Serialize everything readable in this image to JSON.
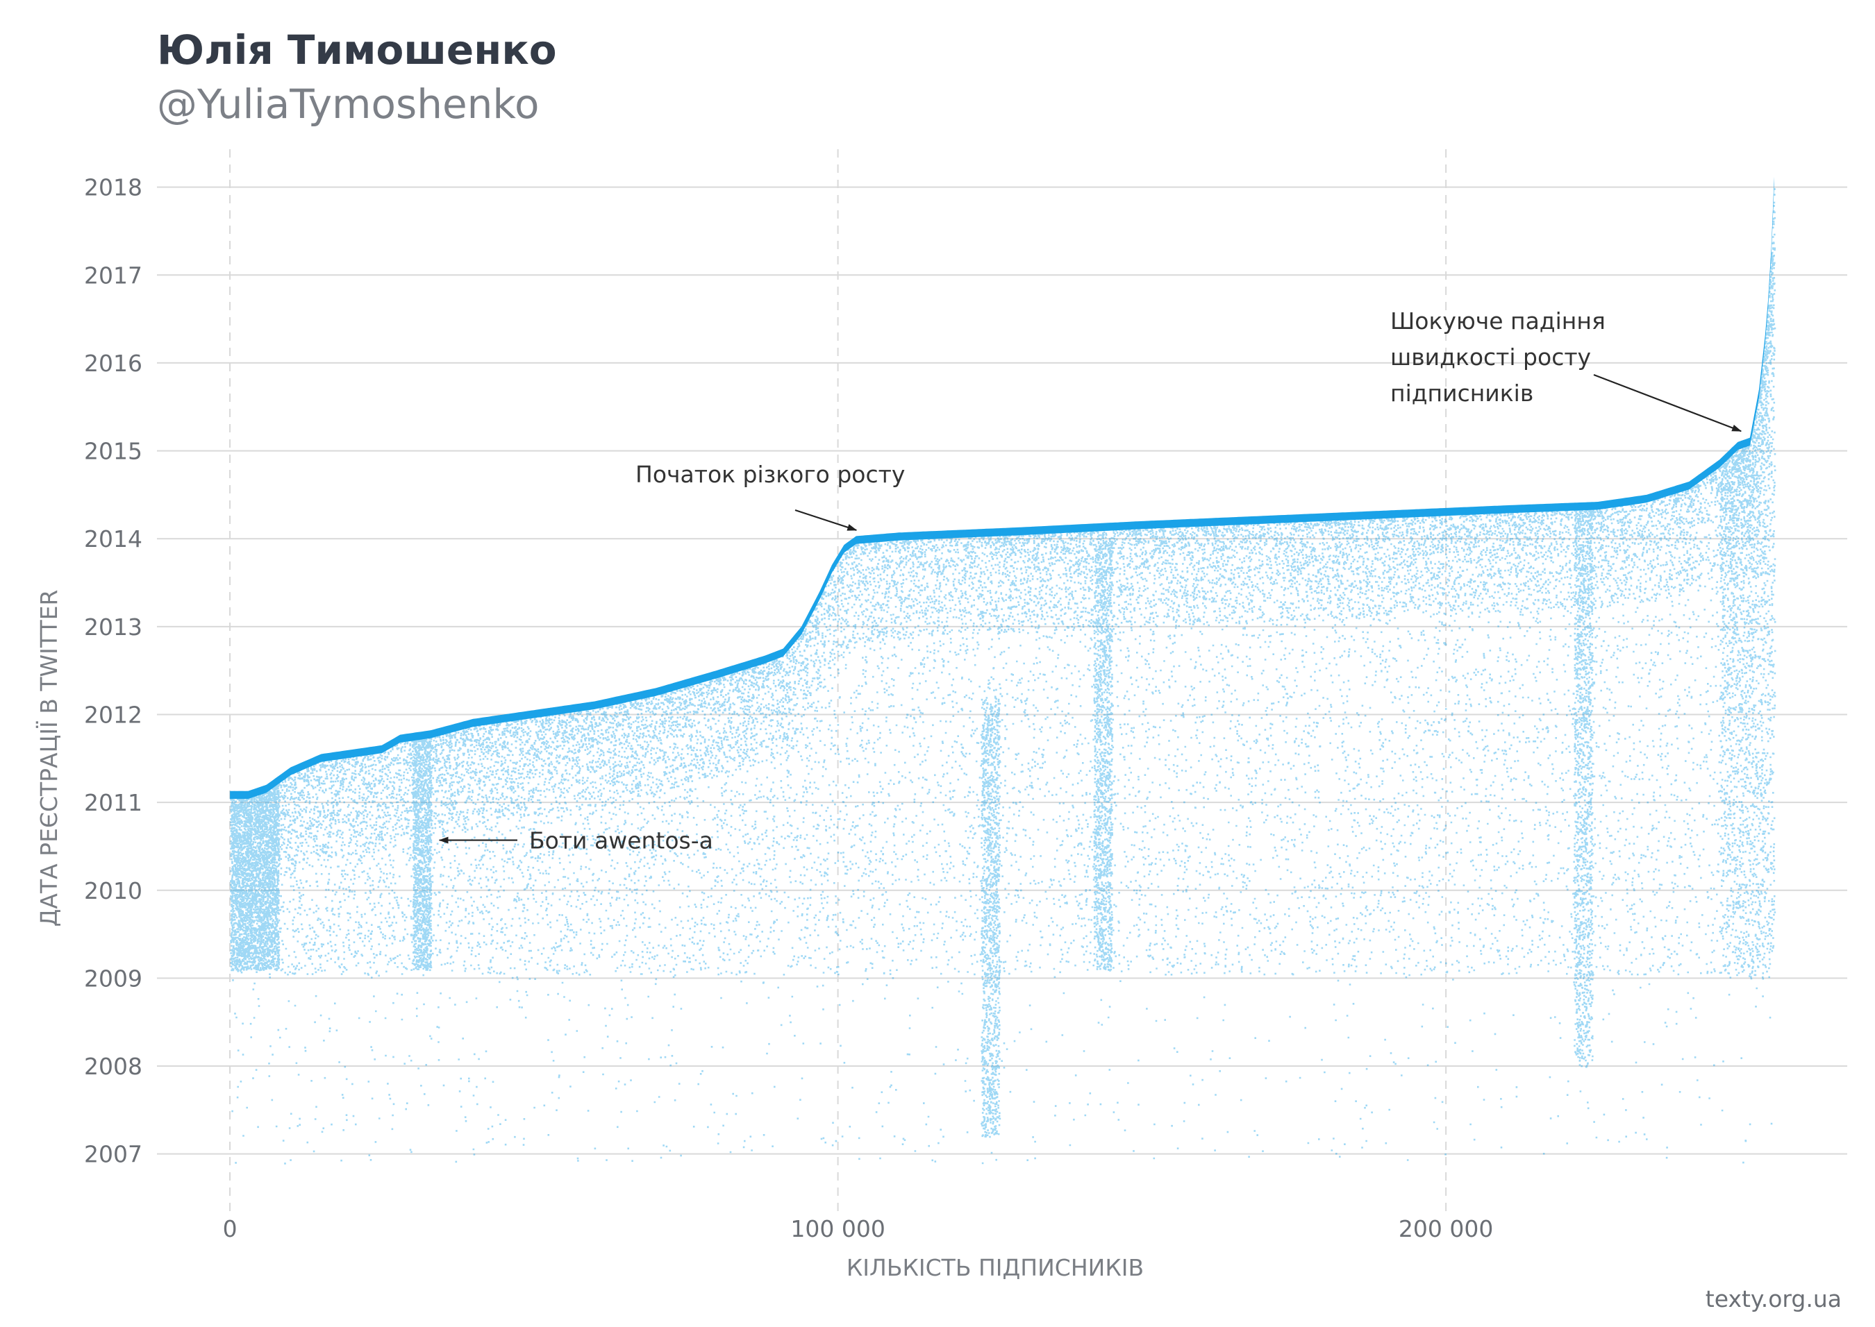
{
  "header": {
    "title": "Юлія Тимошенко",
    "subtitle": "@YuliaTymoshenko"
  },
  "footer": {
    "source": "texty.org.ua"
  },
  "colors": {
    "points": "#1aa3e8",
    "grid": "#d9d9d9",
    "text": "#6b6f75"
  },
  "chart_data": {
    "type": "scatter",
    "xlabel": "КІЛЬКІСТЬ ПІДПИСНИКІВ",
    "ylabel": "ДАТА РЕЄСТРАЦІЇ В TWITTER",
    "xlim": [
      -12000,
      266000
    ],
    "ylim": [
      2006.35,
      2018.55
    ],
    "x_ticks": [
      0,
      100000,
      200000
    ],
    "x_tick_labels": [
      "0",
      "100 000",
      "200 000"
    ],
    "y_ticks": [
      2007,
      2008,
      2009,
      2010,
      2011,
      2012,
      2013,
      2014,
      2015,
      2016,
      2017,
      2018
    ],
    "y_tick_labels": [
      "2007",
      "2008",
      "2009",
      "2010",
      "2011",
      "2012",
      "2013",
      "2014",
      "2015",
      "2016",
      "2017",
      "2018"
    ],
    "grid": true,
    "upper_envelope": [
      [
        0,
        2011.13
      ],
      [
        3000,
        2011.13
      ],
      [
        6000,
        2011.2
      ],
      [
        10000,
        2011.4
      ],
      [
        15000,
        2011.55
      ],
      [
        20000,
        2011.6
      ],
      [
        25000,
        2011.65
      ],
      [
        28000,
        2011.77
      ],
      [
        33000,
        2011.82
      ],
      [
        40000,
        2011.95
      ],
      [
        50000,
        2012.05
      ],
      [
        60000,
        2012.15
      ],
      [
        70000,
        2012.3
      ],
      [
        80000,
        2012.5
      ],
      [
        88000,
        2012.67
      ],
      [
        91000,
        2012.75
      ],
      [
        94000,
        2013.0
      ],
      [
        97000,
        2013.4
      ],
      [
        99000,
        2013.7
      ],
      [
        101000,
        2013.93
      ],
      [
        103000,
        2014.03
      ],
      [
        110000,
        2014.07
      ],
      [
        130000,
        2014.13
      ],
      [
        150000,
        2014.2
      ],
      [
        170000,
        2014.26
      ],
      [
        190000,
        2014.32
      ],
      [
        210000,
        2014.38
      ],
      [
        225000,
        2014.42
      ],
      [
        233000,
        2014.5
      ],
      [
        240000,
        2014.65
      ],
      [
        245000,
        2014.9
      ],
      [
        248000,
        2015.1
      ],
      [
        250000,
        2015.15
      ],
      [
        251500,
        2015.7
      ],
      [
        252800,
        2016.5
      ],
      [
        253500,
        2017.3
      ],
      [
        254000,
        2018.12
      ]
    ],
    "dense_bands": [
      {
        "x": 31500,
        "y_range": [
          2009.1,
          2011.8
        ]
      },
      {
        "x": 125000,
        "y_range": [
          2007.2,
          2012.2
        ]
      },
      {
        "x": 143500,
        "y_range": [
          2009.1,
          2014.0
        ]
      },
      {
        "x": 222500,
        "y_range": [
          2008.0,
          2014.4
        ]
      }
    ],
    "annotations": [
      {
        "text": "Боти awentos-a",
        "point": [
          34000,
          2010.57
        ]
      },
      {
        "text": "Початок різкого росту",
        "point": [
          103500,
          2014.05
        ]
      },
      {
        "lines": [
          "Шокуюче падіння",
          "швидкості росту",
          "підписників"
        ],
        "point": [
          249000,
          2015.2
        ]
      }
    ]
  }
}
